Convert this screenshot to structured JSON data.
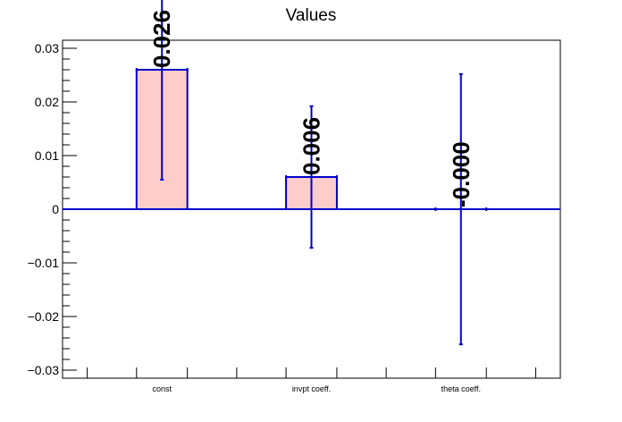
{
  "chart_data": {
    "type": "bar",
    "title": "Values",
    "xlabel": "",
    "ylabel": "",
    "categories": [
      "const",
      "invpt coeff.",
      "theta coeff."
    ],
    "values": [
      0.026,
      0.006,
      0.0
    ],
    "errors": [
      0.0205,
      0.0132,
      0.0252
    ],
    "data_labels": [
      "0.026",
      "0.006",
      "-0.000"
    ],
    "ylim": [
      -0.0315,
      0.0315
    ],
    "yticks": [
      -0.03,
      -0.02,
      -0.01,
      0,
      0.01,
      0.02,
      0.03
    ],
    "ytick_labels": [
      "−0.03",
      "−0.02",
      "−0.01",
      "0",
      "0.01",
      "0.02",
      "0.03"
    ],
    "grid": false,
    "legend": "none",
    "colors": {
      "bar_fill": "#ffcccc",
      "bar_edge": "#0000cc",
      "error_bar": "#0000cc",
      "zero_line": "#0000cc",
      "axis": "#000000"
    }
  }
}
